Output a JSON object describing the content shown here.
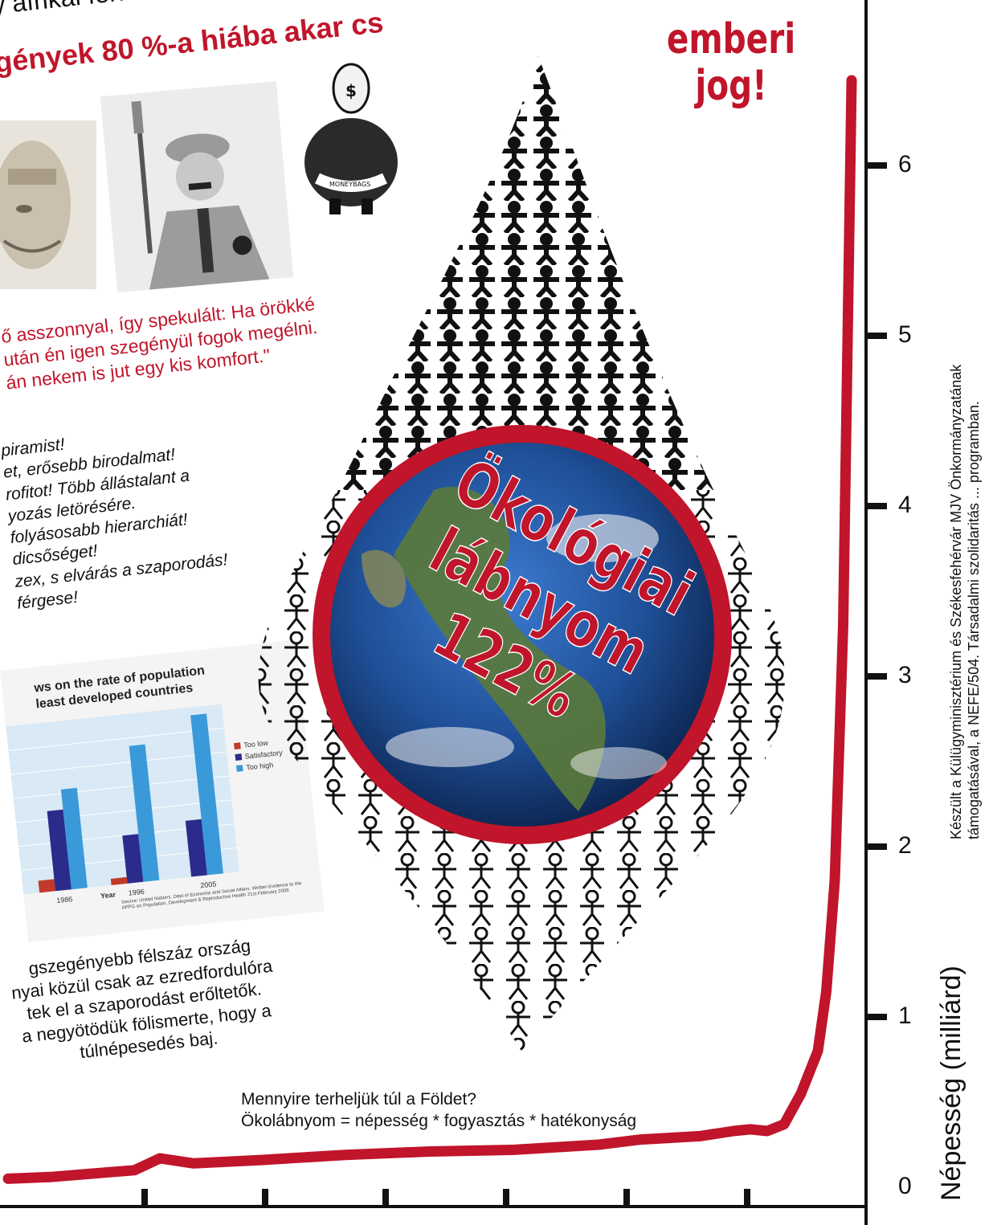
{
  "headline": {
    "line1": "y afrikai ferfira",
    "line2": "gények 80 %-a hiába akar cs"
  },
  "banner": {
    "line1": "emberi",
    "line2": "jog!"
  },
  "quote": {
    "line1": "ő asszonnyal, így spekulált: Ha örökké",
    "line2": "után én igen szegényül fogok megélni.",
    "line3": "án nekem is jut egy kis komfort.\""
  },
  "slogans": [
    "piramist!",
    "et, erősebb birodalmat!",
    "rofitot! Több állástalant a",
    "yozás letörésére.",
    "folyásosabb hierarchiát!",
    "dicsőséget!",
    "zex, s elvárás a szaporodás!",
    "férgese!"
  ],
  "inset_chart": {
    "title_line1": "ws on the rate of population",
    "title_line2": "least developed countries",
    "legend": [
      "Too low",
      "Satisfactory",
      "Too high"
    ],
    "colors": {
      "too_low": "#c23a2b",
      "satisfactory": "#2b2b8c",
      "too_high": "#3a9ad9"
    },
    "year_label": "Year",
    "years": [
      "1986",
      "1996",
      "2005"
    ],
    "source": "Source: United Nations, Dept of Economic and Social Affairs. Written Evidence to the APPG on Population, Development & Reproductive Health 21st February 2006"
  },
  "caption": {
    "line1": "gszegényebb félszáz ország",
    "line2": "nyai közül csak az ezredfordulóra",
    "line3": "tek el a szaporodást erőltetők.",
    "line4": "a negyötödük fölismerte, hogy a",
    "line5": "túlnépesedés baj."
  },
  "globe_text": {
    "line1": "Ökológiai",
    "line2": "lábnyom",
    "line3": "122%"
  },
  "moneybags_label": "MONEYBAGS",
  "footnote": {
    "line1": "Mennyire terheljük túl a Földet?",
    "line2": "Ökolábnyom = népesség * fogyasztás * hatékonyság"
  },
  "credits": {
    "line1": "Készült a Külügyminisztérium és Székesfehérvár MJV Önkormányzatának",
    "line2": "támogatásával, a NEFE/504. Társadalmi szolidaritás ... programban."
  },
  "chart_data": {
    "type": "line",
    "ylabel": "Népesség (milliárd)",
    "y_ticks": [
      "0",
      "1",
      "2",
      "3",
      "4",
      "5",
      "6"
    ],
    "ylim": [
      0,
      6.6
    ],
    "x": [
      0,
      0.05,
      0.1,
      0.15,
      0.18,
      0.22,
      0.3,
      0.4,
      0.5,
      0.6,
      0.7,
      0.75,
      0.82,
      0.86,
      0.88,
      0.9,
      0.92,
      0.94,
      0.96,
      0.97,
      0.98,
      0.99,
      1.0
    ],
    "values": [
      0.05,
      0.06,
      0.08,
      0.1,
      0.17,
      0.14,
      0.16,
      0.19,
      0.21,
      0.22,
      0.25,
      0.28,
      0.3,
      0.33,
      0.34,
      0.33,
      0.37,
      0.55,
      0.8,
      1.15,
      1.8,
      3.3,
      6.5
    ],
    "line_color": "#c0152a"
  }
}
